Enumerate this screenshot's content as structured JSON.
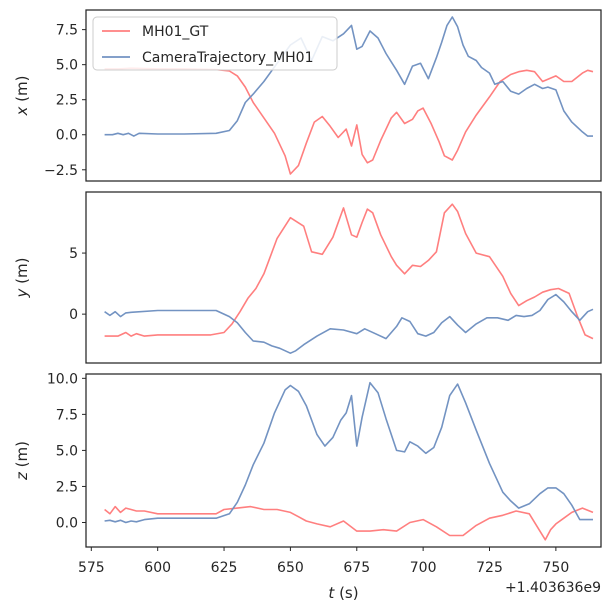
{
  "chart_data": [
    {
      "type": "line",
      "ylabel": "x (m)",
      "ylim": [
        -3.3,
        8.9
      ],
      "yticks": [
        7.5,
        5.0,
        2.5,
        0.0,
        -2.5
      ],
      "ytick_labels": [
        "7.5",
        "5.0",
        "2.5",
        "0.0",
        "−2.5"
      ],
      "legend": "upper-left",
      "series": [
        {
          "name": "MH01_GT",
          "color": "#ff7f7f",
          "x": [
            580,
            585,
            590,
            600,
            610,
            622,
            627,
            630,
            633,
            636,
            640,
            644,
            648,
            650,
            653,
            656,
            659,
            662,
            665,
            668,
            671,
            673,
            675,
            677,
            679,
            681,
            684,
            688,
            690,
            693,
            696,
            698,
            700,
            703,
            706,
            708,
            711,
            713,
            716,
            720,
            725,
            729,
            733,
            736,
            739,
            742,
            745,
            750,
            753,
            756,
            760,
            762,
            764
          ],
          "y": [
            4.7,
            4.7,
            4.75,
            4.7,
            4.7,
            4.65,
            4.55,
            4.2,
            3.4,
            2.3,
            1.2,
            0.1,
            -1.5,
            -2.8,
            -2.2,
            -0.6,
            0.9,
            1.3,
            0.6,
            -0.2,
            0.4,
            -0.8,
            0.7,
            -1.4,
            -2.0,
            -1.8,
            -0.4,
            1.2,
            1.6,
            0.8,
            1.1,
            1.7,
            1.9,
            0.8,
            -0.5,
            -1.5,
            -1.8,
            -1.1,
            0.2,
            1.4,
            2.7,
            3.8,
            4.3,
            4.5,
            4.6,
            4.5,
            3.8,
            4.2,
            3.8,
            3.8,
            4.4,
            4.6,
            4.5
          ]
        },
        {
          "name": "CameraTrajectory_MH01",
          "color": "#7393c2",
          "x": [
            580,
            583,
            585,
            587,
            589,
            591,
            593,
            600,
            610,
            622,
            627,
            630,
            633,
            636,
            640,
            645,
            650,
            654,
            658,
            662,
            666,
            670,
            673,
            675,
            677,
            680,
            683,
            686,
            688,
            690,
            693,
            696,
            699,
            702,
            705,
            707,
            709,
            711,
            713,
            715,
            717,
            720,
            722,
            725,
            727,
            730,
            733,
            736,
            739,
            742,
            745,
            747,
            750,
            753,
            756,
            760,
            762,
            764
          ],
          "y": [
            0.0,
            0.0,
            0.1,
            0.0,
            0.1,
            -0.1,
            0.1,
            0.05,
            0.05,
            0.1,
            0.3,
            1.0,
            2.3,
            2.9,
            3.8,
            5.1,
            6.4,
            6.9,
            5.3,
            7.0,
            6.7,
            7.2,
            7.8,
            6.1,
            6.3,
            7.4,
            6.9,
            5.8,
            5.2,
            4.6,
            3.6,
            4.9,
            5.1,
            4.0,
            5.5,
            6.6,
            7.8,
            8.4,
            7.7,
            6.4,
            5.6,
            5.3,
            4.8,
            4.4,
            3.6,
            3.8,
            3.1,
            2.9,
            3.3,
            3.6,
            3.3,
            3.4,
            3.2,
            1.7,
            0.9,
            0.2,
            -0.1,
            -0.1
          ]
        }
      ]
    },
    {
      "type": "line",
      "ylabel": "y (m)",
      "ylim": [
        -4.0,
        10.0
      ],
      "yticks": [
        5,
        0
      ],
      "ytick_labels": [
        "5",
        "0"
      ],
      "series": [
        {
          "name": "MH01_GT",
          "color": "#ff7f7f",
          "x": [
            580,
            585,
            588,
            590,
            592,
            595,
            600,
            610,
            620,
            625,
            628,
            631,
            634,
            637,
            640,
            645,
            650,
            655,
            658,
            662,
            666,
            670,
            673,
            675,
            677,
            679,
            681,
            684,
            688,
            690,
            693,
            696,
            699,
            702,
            705,
            708,
            711,
            713,
            716,
            720,
            725,
            730,
            733,
            736,
            739,
            742,
            745,
            748,
            751,
            755,
            758,
            761,
            764
          ],
          "y": [
            -1.8,
            -1.8,
            -1.5,
            -1.8,
            -1.6,
            -1.8,
            -1.7,
            -1.7,
            -1.7,
            -1.5,
            -0.8,
            0.2,
            1.3,
            2.1,
            3.3,
            6.2,
            7.9,
            7.2,
            5.1,
            4.9,
            6.3,
            8.7,
            6.5,
            6.3,
            7.5,
            8.6,
            8.3,
            6.5,
            4.7,
            4.0,
            3.3,
            4.0,
            3.9,
            4.4,
            5.1,
            8.3,
            9.0,
            8.4,
            6.6,
            5.0,
            4.7,
            3.1,
            1.7,
            0.7,
            1.1,
            1.4,
            1.8,
            2.0,
            2.1,
            1.7,
            -0.1,
            -1.7,
            -2.0
          ]
        },
        {
          "name": "CameraTrajectory_MH01",
          "color": "#7393c2",
          "x": [
            580,
            582,
            584,
            586,
            588,
            590,
            600,
            610,
            622,
            627,
            630,
            633,
            636,
            640,
            643,
            646,
            650,
            652,
            655,
            660,
            665,
            670,
            675,
            678,
            682,
            686,
            690,
            692,
            695,
            698,
            701,
            704,
            707,
            710,
            713,
            716,
            720,
            724,
            728,
            732,
            735,
            738,
            741,
            744,
            747,
            750,
            753,
            756,
            759,
            762,
            764
          ],
          "y": [
            0.2,
            -0.1,
            0.2,
            -0.2,
            0.1,
            0.15,
            0.3,
            0.3,
            0.3,
            -0.2,
            -0.7,
            -1.5,
            -2.2,
            -2.3,
            -2.6,
            -2.8,
            -3.2,
            -3.0,
            -2.5,
            -1.8,
            -1.2,
            -1.3,
            -1.6,
            -1.2,
            -1.6,
            -2.0,
            -1.0,
            -0.3,
            -0.6,
            -1.6,
            -1.8,
            -1.5,
            -0.7,
            -0.2,
            -0.9,
            -1.5,
            -0.8,
            -0.3,
            -0.3,
            -0.5,
            -0.1,
            -0.2,
            -0.1,
            0.3,
            1.2,
            1.6,
            1.0,
            0.2,
            -0.5,
            0.2,
            0.4
          ]
        }
      ]
    },
    {
      "type": "line",
      "ylabel": "z (m)",
      "ylim": [
        -1.7,
        10.3
      ],
      "yticks": [
        10.0,
        7.5,
        5.0,
        2.5,
        0.0
      ],
      "ytick_labels": [
        "10.0",
        "7.5",
        "5.0",
        "2.5",
        "0.0"
      ],
      "xlabel": "t (s)",
      "xlim": [
        573,
        767
      ],
      "xticks": [
        575,
        600,
        625,
        650,
        675,
        700,
        725,
        750
      ],
      "xtick_labels": [
        "575",
        "600",
        "625",
        "650",
        "675",
        "700",
        "725",
        "750"
      ],
      "x_offset_label": "+1.403636e9",
      "series": [
        {
          "name": "MH01_GT",
          "color": "#ff7f7f",
          "x": [
            580,
            582,
            584,
            586,
            588,
            590,
            592,
            595,
            600,
            610,
            622,
            625,
            630,
            635,
            640,
            645,
            650,
            653,
            656,
            660,
            665,
            670,
            675,
            680,
            685,
            690,
            695,
            700,
            705,
            710,
            715,
            720,
            725,
            730,
            735,
            740,
            744,
            746,
            748,
            750,
            753,
            756,
            760,
            764
          ],
          "y": [
            0.9,
            0.6,
            1.1,
            0.7,
            1.0,
            0.9,
            0.8,
            0.8,
            0.6,
            0.6,
            0.6,
            0.9,
            1.0,
            1.1,
            0.9,
            0.9,
            0.7,
            0.4,
            0.1,
            -0.1,
            -0.3,
            0.1,
            -0.6,
            -0.6,
            -0.5,
            -0.6,
            0.0,
            0.2,
            -0.3,
            -0.9,
            -0.9,
            -0.2,
            0.3,
            0.5,
            0.8,
            0.6,
            -0.6,
            -1.2,
            -0.5,
            -0.1,
            0.3,
            0.7,
            1.0,
            0.7
          ]
        },
        {
          "name": "CameraTrajectory_MH01",
          "color": "#7393c2",
          "x": [
            580,
            582,
            584,
            586,
            588,
            590,
            592,
            595,
            600,
            610,
            622,
            627,
            630,
            633,
            636,
            640,
            644,
            648,
            650,
            653,
            656,
            660,
            663,
            666,
            669,
            671,
            673,
            675,
            677,
            680,
            683,
            686,
            690,
            693,
            695,
            698,
            701,
            704,
            707,
            710,
            713,
            716,
            720,
            725,
            730,
            733,
            736,
            740,
            744,
            747,
            750,
            753,
            756,
            759,
            762,
            764
          ],
          "y": [
            0.1,
            0.15,
            0.05,
            0.15,
            0.0,
            0.1,
            0.05,
            0.2,
            0.3,
            0.3,
            0.3,
            0.6,
            1.4,
            2.6,
            4.0,
            5.5,
            7.6,
            9.2,
            9.5,
            9.1,
            8.1,
            6.1,
            5.3,
            5.9,
            7.1,
            7.6,
            8.8,
            5.3,
            7.3,
            9.7,
            9.0,
            7.2,
            5.0,
            4.9,
            5.6,
            5.3,
            4.8,
            5.2,
            6.6,
            8.8,
            9.6,
            8.3,
            6.4,
            4.1,
            2.1,
            1.5,
            1.0,
            1.3,
            2.0,
            2.4,
            2.4,
            2.0,
            1.2,
            0.2,
            0.2,
            0.2
          ]
        }
      ]
    }
  ]
}
